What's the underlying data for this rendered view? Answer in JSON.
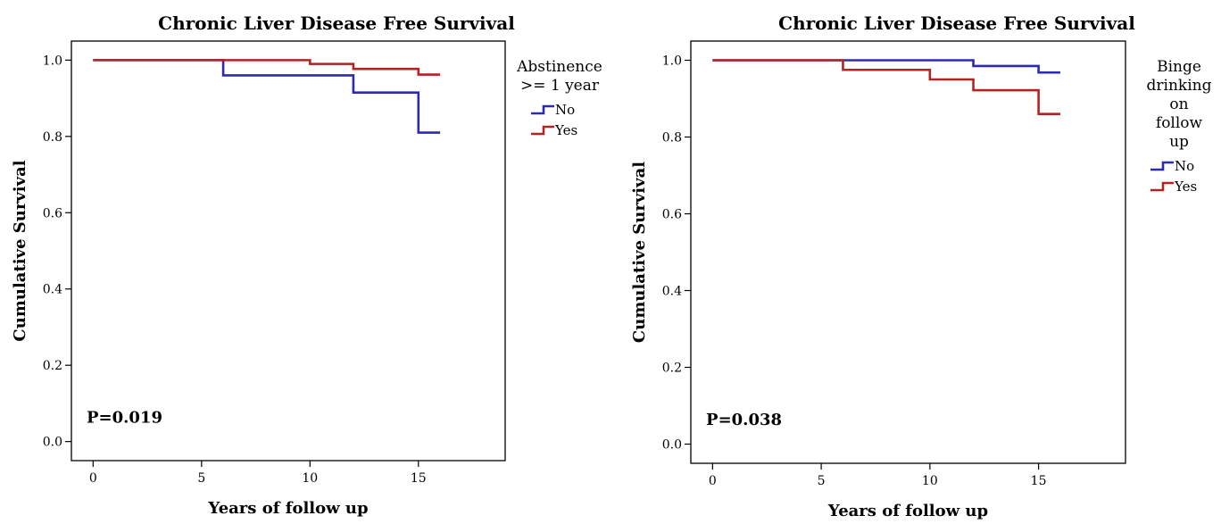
{
  "chart_data": [
    {
      "type": "line",
      "title": "Chronic Liver Disease Free Survival",
      "xlabel": "Years of follow up",
      "ylabel": "Cumulative Survival",
      "xlim": [
        -1,
        19
      ],
      "ylim": [
        -0.05,
        1.05
      ],
      "x_ticks": [
        0,
        5,
        10,
        15
      ],
      "x_tick_labels": [
        "0",
        "5",
        "10",
        "15"
      ],
      "y_ticks": [
        0.0,
        0.2,
        0.4,
        0.6,
        0.8,
        1.0
      ],
      "y_tick_labels": [
        "0.0",
        "0.2",
        "0.4",
        "0.6",
        "0.8",
        "1.0"
      ],
      "step": true,
      "legend_title_lines": [
        "Abstinence",
        ">= 1 year"
      ],
      "legend_placement": "outside-right",
      "annotation": "P=0.019",
      "series": [
        {
          "name": "No",
          "color": "#2a2ab4",
          "x": [
            0,
            6,
            12,
            15,
            16
          ],
          "y": [
            1.0,
            0.96,
            0.915,
            0.81,
            0.81
          ]
        },
        {
          "name": "Yes",
          "color": "#b02424",
          "x": [
            0,
            10,
            12,
            15,
            16
          ],
          "y": [
            1.0,
            0.99,
            0.977,
            0.962,
            0.962
          ]
        }
      ]
    },
    {
      "type": "line",
      "title": "Chronic Liver Disease Free Survival",
      "xlabel": "Years of follow up",
      "ylabel": "Cumulative Survival",
      "xlim": [
        -1,
        19
      ],
      "ylim": [
        -0.05,
        1.05
      ],
      "x_ticks": [
        0,
        5,
        10,
        15
      ],
      "x_tick_labels": [
        "0",
        "5",
        "10",
        "15"
      ],
      "y_ticks": [
        0.0,
        0.2,
        0.4,
        0.6,
        0.8,
        1.0
      ],
      "y_tick_labels": [
        "0.0",
        "0.2",
        "0.4",
        "0.6",
        "0.8",
        "1.0"
      ],
      "step": true,
      "legend_title_lines": [
        "Binge",
        "drinking",
        "on",
        "follow",
        "up"
      ],
      "legend_placement": "outside-right",
      "annotation": "P=0.038",
      "series": [
        {
          "name": "No",
          "color": "#2a2ab4",
          "x": [
            0,
            12,
            15,
            16
          ],
          "y": [
            1.0,
            0.985,
            0.968,
            0.968
          ]
        },
        {
          "name": "Yes",
          "color": "#b02424",
          "x": [
            0,
            6,
            10,
            12,
            15,
            16
          ],
          "y": [
            1.0,
            0.975,
            0.95,
            0.922,
            0.86,
            0.86
          ]
        }
      ]
    }
  ]
}
